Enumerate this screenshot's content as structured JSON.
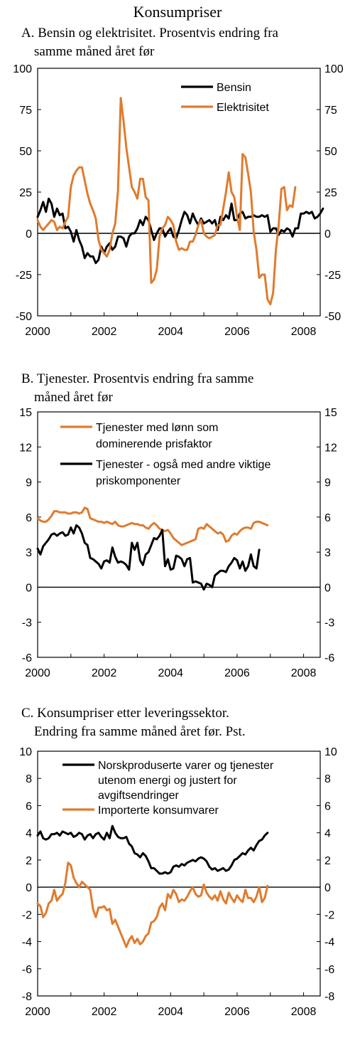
{
  "page_title": "Konsumpriser",
  "chart_data": [
    {
      "id": "A",
      "type": "line",
      "title": "A. Bensin og elektrisitet. Prosentvis endring fra",
      "subtitle": "samme måned året før",
      "xlim": [
        2000,
        2008.5
      ],
      "ylim": [
        -50,
        100
      ],
      "yticks": [
        100,
        75,
        50,
        25,
        0,
        -25,
        -50
      ],
      "xticks": [
        2000,
        2002,
        2004,
        2006,
        2008
      ],
      "ytick_labels": [
        "100",
        "75",
        "50",
        "25",
        "0",
        "-25",
        "-50"
      ],
      "xtick_labels": [
        "2000",
        "2002",
        "2004",
        "2006",
        "2008"
      ],
      "grid": false,
      "legend_position": "top-right",
      "series": [
        {
          "name": "Bensin",
          "color": "#000000",
          "x_start": 2000.0,
          "x_step": 0.08333,
          "values": [
            10,
            14,
            19,
            13,
            21,
            18,
            10,
            15,
            11,
            12,
            3,
            4,
            1,
            -5,
            2,
            -4,
            -8,
            -15,
            -12,
            -14,
            -14,
            -18,
            -16,
            -8,
            -12,
            -8,
            -6,
            -10,
            -8,
            -2,
            -2,
            -3,
            -8,
            -2,
            0,
            0,
            3,
            8,
            5,
            10,
            8,
            2,
            -4,
            0,
            3,
            3,
            -2,
            1,
            3,
            -2,
            -3,
            2,
            8,
            13,
            11,
            6,
            12,
            8,
            5,
            9,
            6,
            7,
            8,
            6,
            8,
            2,
            10,
            8,
            11,
            9,
            18,
            8,
            8,
            12,
            13,
            9,
            10,
            10,
            11,
            10,
            10,
            11,
            10,
            11,
            1,
            3,
            3,
            -1,
            2,
            1,
            3,
            2,
            -2,
            3,
            3,
            12,
            12,
            13,
            12,
            13,
            9,
            10,
            12,
            15
          ]
        },
        {
          "name": "Elektrisitet",
          "color": "#e07b2e",
          "x_start": 2000.0,
          "x_step": 0.08333,
          "values": [
            8,
            4,
            2,
            4,
            6,
            8,
            7,
            2,
            4,
            3,
            7,
            10,
            28,
            35,
            38,
            40,
            40,
            32,
            24,
            18,
            14,
            9,
            -4,
            -10,
            -12,
            -14,
            -10,
            0,
            6,
            26,
            82,
            68,
            52,
            40,
            28,
            25,
            21,
            33,
            33,
            22,
            20,
            -30,
            -28,
            -22,
            -2,
            3,
            5,
            10,
            8,
            5,
            -5,
            -10,
            -9,
            -10,
            -10,
            -5,
            -5,
            -1,
            5,
            8,
            0,
            -2,
            -3,
            -2,
            -1,
            5,
            5,
            15,
            25,
            37,
            25,
            22,
            10,
            2,
            48,
            46,
            36,
            25,
            1,
            -10,
            -27,
            -25,
            -25,
            -40,
            -43,
            -36,
            -10,
            5,
            27,
            28,
            14,
            17,
            16,
            28
          ]
        }
      ]
    },
    {
      "id": "B",
      "type": "line",
      "title": "B. Tjenester. Prosentvis endring fra samme",
      "subtitle": "måned året før",
      "xlim": [
        2000,
        2008.5
      ],
      "ylim": [
        -6,
        15
      ],
      "yticks": [
        15,
        12,
        9,
        6,
        3,
        0,
        -3,
        -6
      ],
      "xticks": [
        2000,
        2002,
        2004,
        2006,
        2008
      ],
      "ytick_labels": [
        "15",
        "12",
        "9",
        "6",
        "3",
        "0",
        "-3",
        "-6"
      ],
      "xtick_labels": [
        "2000",
        "2002",
        "2004",
        "2006",
        "2008"
      ],
      "grid": false,
      "legend_position": "top",
      "series": [
        {
          "name_lines": [
            "Tjenester med lønn som",
            "dominerende prisfaktor"
          ],
          "color": "#e07b2e",
          "x_start": 2000.0,
          "x_step": 0.08333,
          "values": [
            5.9,
            5.7,
            5.6,
            5.6,
            5.8,
            6.1,
            6.5,
            6.5,
            6.4,
            6.4,
            6.4,
            6.3,
            6.3,
            6.4,
            6.4,
            6.3,
            6.4,
            6.8,
            6.7,
            5.9,
            5.8,
            5.7,
            5.6,
            5.6,
            5.5,
            5.6,
            5.5,
            5.4,
            5.6,
            5.3,
            5.2,
            5.2,
            5.3,
            5.4,
            5.5,
            5.4,
            5.4,
            5.3,
            5.3,
            5.1,
            5.0,
            5.3,
            5.5,
            5.3,
            5.0,
            4.9,
            4.8,
            4.9,
            4.6,
            4.2,
            4.0,
            3.8,
            3.6,
            3.7,
            3.8,
            3.9,
            4.0,
            4.1,
            5.0,
            5.1,
            5.0,
            5.4,
            5.2,
            5.0,
            4.8,
            4.6,
            4.7,
            4.5,
            3.9,
            4.0,
            4.4,
            4.6,
            4.5,
            4.8,
            5.0,
            5.1,
            5.1,
            5.0,
            5.5,
            5.6,
            5.6,
            5.5,
            5.4,
            5.3
          ]
        },
        {
          "name_lines": [
            "Tjenester - også med andre viktige",
            "priskomponenter"
          ],
          "color": "#000000",
          "x_start": 2000.0,
          "x_step": 0.08333,
          "values": [
            3.3,
            2.8,
            3.5,
            3.8,
            4.1,
            4.5,
            4.6,
            4.4,
            4.6,
            4.7,
            4.4,
            4.5,
            5.1,
            4.6,
            5.3,
            5.1,
            4.6,
            3.8,
            3.6,
            2.5,
            2.4,
            2.2,
            2.0,
            1.6,
            2.2,
            2.3,
            2.1,
            3.4,
            2.6,
            2.1,
            2.2,
            2.1,
            1.9,
            1.5,
            3.8,
            3.2,
            3.8,
            2.3,
            1.9,
            2.8,
            3.0,
            3.6,
            4.2,
            4.1,
            4.4,
            4.9,
            1.8,
            2.4,
            1.5,
            1.6,
            2.7,
            2.6,
            2.4,
            1.8,
            2.4,
            2.5,
            0.4,
            0.5,
            0.4,
            0.3,
            -0.2,
            0.3,
            0.2,
            0.0,
            1.0,
            1.2,
            1.4,
            1.4,
            1.3,
            1.8,
            2.1,
            2.5,
            2.3,
            1.6,
            2.2,
            1.4,
            1.8,
            2.8,
            1.8,
            1.6,
            3.2
          ]
        }
      ]
    },
    {
      "id": "C",
      "type": "line",
      "title": "C. Konsumpriser etter leveringssektor.",
      "subtitle": "Endring fra samme måned året før. Pst.",
      "xlim": [
        2000,
        2008.5
      ],
      "ylim": [
        -8,
        10
      ],
      "yticks": [
        10,
        8,
        6,
        4,
        2,
        0,
        -2,
        -4,
        -6,
        -8
      ],
      "xticks": [
        2000,
        2002,
        2004,
        2006,
        2008
      ],
      "ytick_labels": [
        "10",
        "8",
        "6",
        "4",
        "2",
        "0",
        "-2",
        "-4",
        "-6",
        "-8"
      ],
      "xtick_labels": [
        "2000",
        "2002",
        "2004",
        "2006",
        "2008"
      ],
      "grid": false,
      "legend_position": "top",
      "series": [
        {
          "name_lines": [
            "Norskproduserte varer og tjenester",
            "utenom energi og justert for",
            "avgiftsendringer"
          ],
          "color": "#000000",
          "x_start": 2000.0,
          "x_step": 0.08333,
          "values": [
            3.8,
            4.1,
            3.6,
            3.5,
            3.6,
            3.9,
            3.9,
            4.0,
            3.8,
            4.1,
            4.0,
            3.9,
            4.0,
            3.7,
            3.8,
            4.0,
            3.9,
            3.5,
            3.8,
            3.9,
            3.6,
            3.9,
            4.0,
            3.7,
            3.5,
            4.0,
            3.6,
            4.5,
            4.0,
            3.7,
            3.6,
            3.6,
            3.7,
            3.2,
            3.0,
            2.5,
            2.4,
            2.2,
            2.5,
            2.3,
            1.9,
            1.4,
            1.4,
            1.2,
            1.0,
            1.0,
            1.1,
            1.0,
            1.1,
            1.5,
            1.6,
            1.5,
            1.7,
            1.6,
            1.8,
            1.9,
            2.0,
            1.9,
            2.1,
            2.2,
            2.1,
            1.9,
            1.5,
            1.3,
            1.4,
            1.2,
            1.3,
            1.4,
            1.2,
            1.3,
            1.6,
            2.0,
            2.1,
            2.3,
            2.5,
            2.4,
            2.7,
            2.9,
            2.7,
            3.1,
            3.4,
            3.5,
            3.8,
            4.0
          ]
        },
        {
          "name": "Importerte konsumvarer",
          "color": "#e07b2e",
          "x_start": 2000.0,
          "x_step": 0.08333,
          "values": [
            -1.2,
            -1.4,
            -2.2,
            -1.9,
            -1.2,
            -1.0,
            -0.2,
            -1.0,
            -0.7,
            -0.5,
            0.3,
            1.8,
            1.6,
            0.7,
            0.3,
            0.0,
            0.4,
            0.2,
            0.0,
            -0.2,
            -1.6,
            -2.2,
            -1.5,
            -1.5,
            -1.4,
            -1.7,
            -1.6,
            -2.7,
            -2.4,
            -2.9,
            -3.4,
            -3.9,
            -4.4,
            -3.9,
            -3.6,
            -4.1,
            -3.8,
            -4.2,
            -4.0,
            -3.6,
            -3.4,
            -2.6,
            -2.5,
            -2.2,
            -1.5,
            -1.2,
            -1.7,
            -0.5,
            -0.8,
            -0.2,
            -0.5,
            -1.1,
            -0.9,
            -1.0,
            -0.7,
            -0.3,
            0.0,
            -0.5,
            -0.7,
            -0.6,
            0.2,
            -0.4,
            -0.7,
            -0.9,
            -0.6,
            -1.0,
            -0.3,
            -0.9,
            -1.2,
            -0.4,
            -0.8,
            -1.1,
            -0.6,
            -0.9,
            -1.1,
            -0.2,
            -0.8,
            -0.8,
            -1.1,
            -0.7,
            0.0,
            -1.1,
            -0.8,
            0.1
          ]
        }
      ]
    }
  ]
}
